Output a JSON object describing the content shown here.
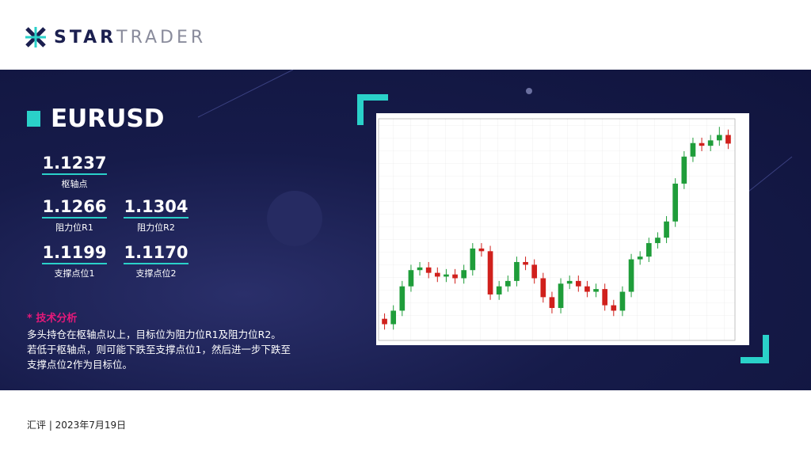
{
  "header": {
    "brand_bold": "STAR",
    "brand_light": "TRADER"
  },
  "panel": {
    "symbol": "EURUSD",
    "pivot": {
      "value": "1.1237",
      "label": "枢轴点"
    },
    "r1": {
      "value": "1.1266",
      "label": "阻力位R1"
    },
    "r2": {
      "value": "1.1304",
      "label": "阻力位R2"
    },
    "s1": {
      "value": "1.1199",
      "label": "支撑点位1"
    },
    "s2": {
      "value": "1.1170",
      "label": "支撑点位2"
    },
    "analysis_title": "* 技术分析",
    "analysis_lines": [
      "多头持仓在枢轴点以上，目标位为阻力位R1及阻力位R2。",
      "若低于枢轴点，则可能下跌至支撑点位1，然后进一步下跌至",
      "支撑点位2作为目标位。"
    ]
  },
  "chart_data": {
    "type": "candlestick",
    "up_color": "#1f9d3a",
    "down_color": "#d0201c",
    "ylim": [
      1.086,
      1.127
    ],
    "open": [
      1.09,
      1.089,
      1.0915,
      1.096,
      1.099,
      1.0995,
      1.0985,
      1.0978,
      1.0982,
      1.0975,
      1.099,
      1.103,
      1.1025,
      1.0945,
      1.096,
      1.097,
      1.1005,
      1.1,
      1.0975,
      1.094,
      1.092,
      1.0965,
      1.097,
      1.096,
      1.095,
      1.0955,
      1.0925,
      1.0915,
      1.095,
      1.101,
      1.1015,
      1.104,
      1.105,
      1.108,
      1.115,
      1.12,
      1.1225,
      1.122,
      1.123,
      1.124
    ],
    "high": [
      1.091,
      1.0925,
      1.097,
      1.1,
      1.1005,
      1.1005,
      1.0995,
      1.0992,
      1.0992,
      1.1,
      1.104,
      1.104,
      1.1035,
      1.097,
      1.098,
      1.1015,
      1.1015,
      1.101,
      1.0985,
      1.095,
      1.0975,
      1.098,
      1.098,
      1.097,
      1.0965,
      1.0965,
      1.0935,
      1.096,
      1.102,
      1.1025,
      1.105,
      1.106,
      1.109,
      1.116,
      1.121,
      1.1235,
      1.1235,
      1.124,
      1.1255,
      1.125
    ],
    "low": [
      1.088,
      1.088,
      1.0905,
      1.095,
      1.098,
      1.0975,
      1.0968,
      1.0968,
      1.0965,
      1.0965,
      1.098,
      1.1015,
      1.0935,
      1.0935,
      1.095,
      1.096,
      1.099,
      1.0965,
      1.093,
      1.091,
      1.091,
      1.0955,
      1.095,
      1.094,
      1.094,
      1.0915,
      1.0905,
      1.0905,
      1.094,
      1.1,
      1.1005,
      1.103,
      1.104,
      1.107,
      1.114,
      1.119,
      1.121,
      1.121,
      1.122,
      1.1214
    ],
    "close": [
      1.089,
      1.0915,
      1.096,
      1.099,
      1.0995,
      1.0985,
      1.0978,
      1.0982,
      1.0975,
      1.099,
      1.103,
      1.1025,
      1.0945,
      1.096,
      1.097,
      1.1005,
      1.1,
      1.0975,
      1.094,
      1.092,
      1.0965,
      1.097,
      1.096,
      1.095,
      1.0955,
      1.0925,
      1.0915,
      1.095,
      1.101,
      1.1015,
      1.104,
      1.105,
      1.108,
      1.115,
      1.12,
      1.1225,
      1.122,
      1.123,
      1.124,
      1.1224
    ]
  },
  "footer": {
    "text": "汇评 | 2023年7月19日"
  }
}
